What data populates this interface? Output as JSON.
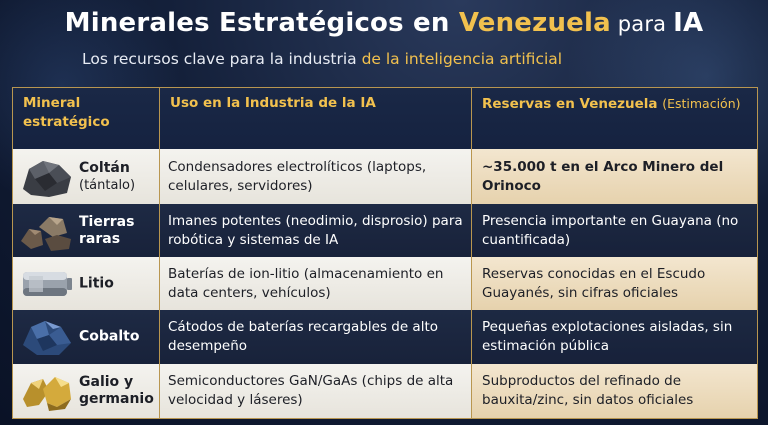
{
  "title": {
    "part1": "Minerales Estratégicos en ",
    "highlight": "Venezuela",
    "part2": " para ",
    "part3": "IA"
  },
  "subtitle": {
    "part1": "Los recursos clave para la industria ",
    "highlight": "de la inteligencia artificial"
  },
  "table": {
    "headers": {
      "mineral": "Mineral estratégico",
      "uso": "Uso en la Industria de la IA",
      "reservas": "Reservas en Venezuela",
      "reservas_note": "(Estimación)"
    },
    "rows": [
      {
        "name": "Coltán",
        "sub": "(tántalo)",
        "icon": "coltan-rock-icon",
        "uso": "Condensadores electrolíticos (laptops, celulares, servidores)",
        "reservas": "~35.000 t en el Arco Minero del Orinoco"
      },
      {
        "name": "Tierras raras",
        "sub": "",
        "icon": "rare-earth-rocks-icon",
        "uso": "Imanes potentes (neodimio, disprosio) para robótica y sistemas de IA",
        "reservas": "Presencia importante en Guayana (no cuantificada)"
      },
      {
        "name": "Litio",
        "sub": "",
        "icon": "lithium-battery-icon",
        "uso": "Baterías de ion-litio (almacenamiento en data centers, vehículos)",
        "reservas": "Reservas conocidas en el Escudo Guayanés, sin cifras oficiales"
      },
      {
        "name": "Cobalto",
        "sub": "",
        "icon": "cobalt-ore-icon",
        "uso": "Cátodos de baterías recargables de alto desempeño",
        "reservas": "Pequeñas explotaciones aisladas, sin estimación pública"
      },
      {
        "name": "Galio y germanio",
        "sub": "",
        "icon": "gallium-nuggets-icon",
        "uso": "Semiconductores GaN/GaAs (chips de alta velocidad y láseres)",
        "reservas": "Subproductos del refinado de bauxita/zinc, sin datos oficiales"
      }
    ]
  }
}
